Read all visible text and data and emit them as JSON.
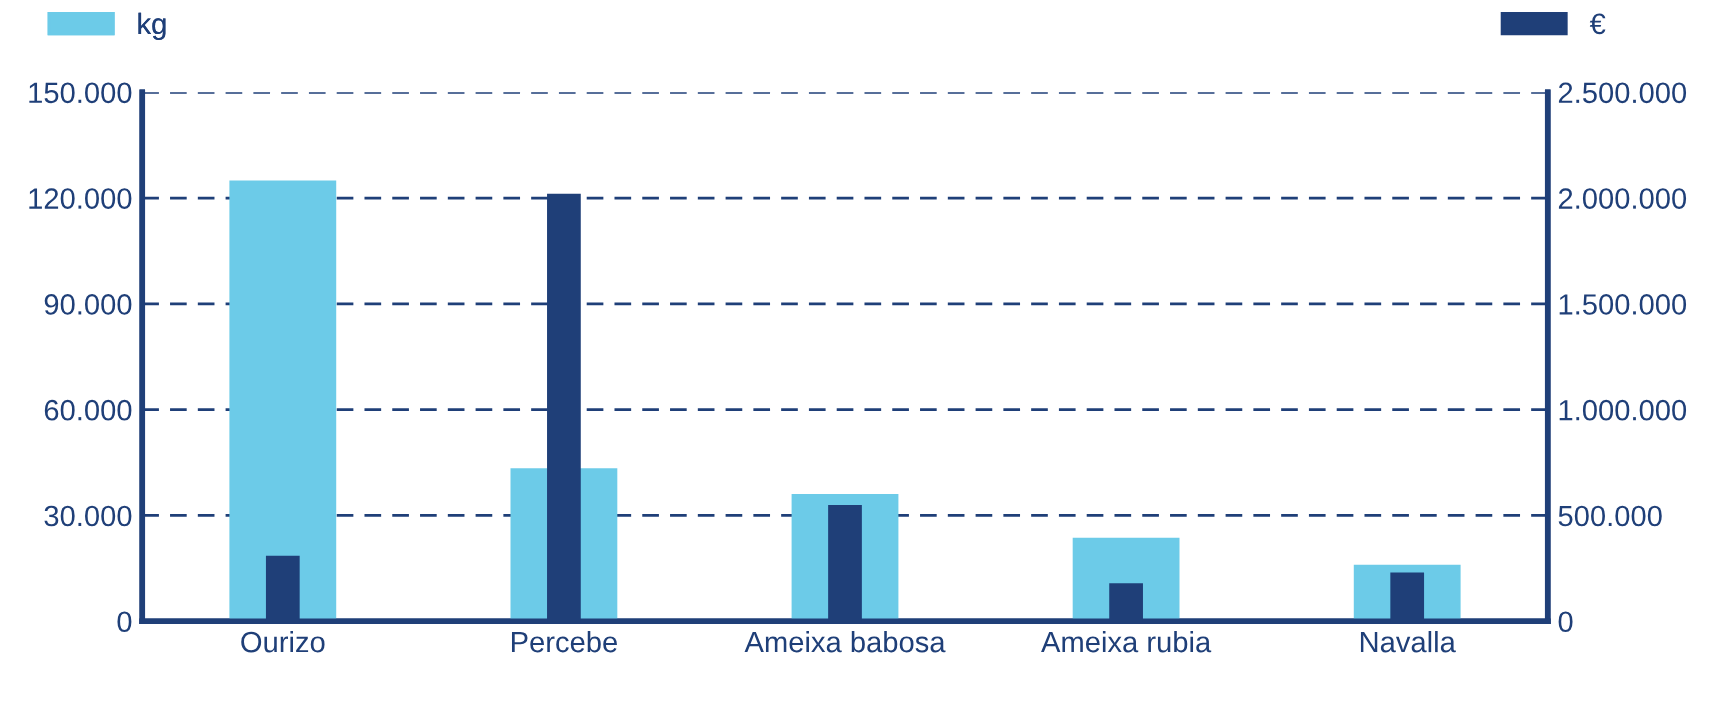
{
  "chart_data": {
    "type": "bar",
    "categories": [
      "Ourizo",
      "Percebe",
      "Ameixa babosa",
      "Ameixa rubia",
      "Navalla"
    ],
    "series": [
      {
        "name": "kg",
        "color": "#6ccbe8",
        "values": [
          125000,
          43400,
          36100,
          23700,
          16000
        ]
      },
      {
        "name": "€",
        "color": "#1f3f78",
        "axis": "y2",
        "values": [
          310000,
          2020000,
          550000,
          180000,
          230000
        ]
      }
    ],
    "ylim": [
      0,
      150000
    ],
    "yticks": [
      {
        "value": 0,
        "label": "0"
      },
      {
        "value": 30000,
        "label": "30.000"
      },
      {
        "value": 60000,
        "label": "60.000"
      },
      {
        "value": 90000,
        "label": "90.000"
      },
      {
        "value": 120000,
        "label": "120.000"
      },
      {
        "value": 150000,
        "label": "150.000"
      }
    ],
    "y2lim": [
      0,
      2500000
    ],
    "y2ticks": [
      {
        "value": 0,
        "label": "0"
      },
      {
        "value": 500000,
        "label": "500.000"
      },
      {
        "value": 1000000,
        "label": "1.000.000"
      },
      {
        "value": 1500000,
        "label": "1.500.000"
      },
      {
        "value": 2000000,
        "label": "2.000.000"
      },
      {
        "value": 2500000,
        "label": "2.500.000"
      }
    ],
    "grid": "y",
    "legend": "top"
  }
}
